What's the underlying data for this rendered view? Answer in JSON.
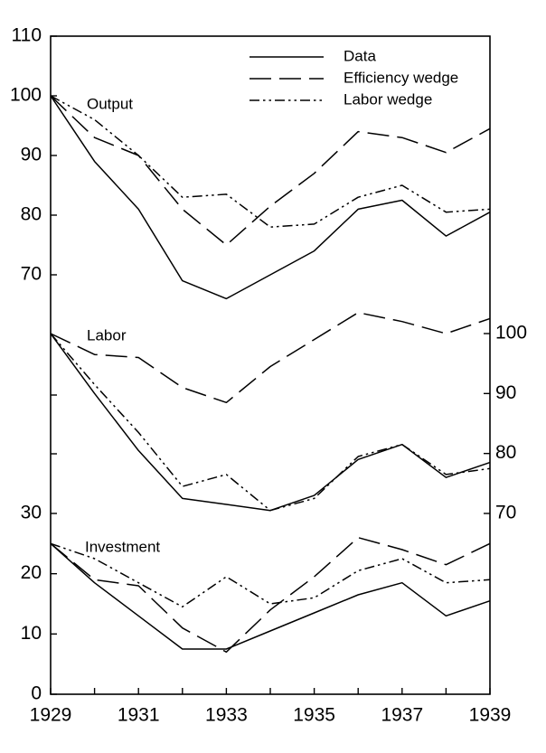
{
  "chart_data": {
    "type": "line",
    "title": "",
    "xlabel": "",
    "ylabel": "",
    "x": [
      1929,
      1930,
      1931,
      1932,
      1933,
      1934,
      1935,
      1936,
      1937,
      1938,
      1939
    ],
    "xlim": [
      1929,
      1939
    ],
    "x_tick_labels": [
      "1929",
      "1931",
      "1933",
      "1935",
      "1937",
      "1939"
    ],
    "grid": false,
    "legend": {
      "placement": "top-right",
      "entries": [
        {
          "name": "Data",
          "style": "solid"
        },
        {
          "name": "Efficiency wedge",
          "style": "dashed"
        },
        {
          "name": "Labor wedge",
          "style": "dash-dot-dot"
        }
      ]
    },
    "panels": [
      {
        "label": "Output",
        "axis_side": "left",
        "ylim": [
          70,
          110
        ],
        "y_tick_labels": [
          "70",
          "80",
          "90",
          "100",
          "110"
        ],
        "series": [
          {
            "name": "Data",
            "values": [
              100,
              89,
              81,
              69,
              66,
              70,
              74,
              81,
              82.5,
              76.5,
              80.5
            ]
          },
          {
            "name": "Efficiency wedge",
            "values": [
              100,
              93,
              90,
              81,
              75,
              81.5,
              87,
              94,
              93,
              90.5,
              94.5
            ]
          },
          {
            "name": "Labor wedge",
            "values": [
              100,
              96,
              90,
              83,
              83.5,
              78,
              78.5,
              83,
              85,
              80.5,
              81
            ]
          }
        ]
      },
      {
        "label": "Labor",
        "axis_side": "right",
        "ylim": [
          70,
          100
        ],
        "y_tick_labels": [
          "70",
          "80",
          "90",
          "100"
        ],
        "series": [
          {
            "name": "Data",
            "values": [
              100,
              90,
              80.5,
              72.5,
              71.5,
              70.5,
              73,
              79,
              81.5,
              76,
              78.5
            ]
          },
          {
            "name": "Efficiency wedge",
            "values": [
              100,
              96.5,
              96,
              91,
              88.5,
              94.5,
              99,
              103.5,
              102,
              100,
              102.5
            ]
          },
          {
            "name": "Labor wedge",
            "values": [
              100,
              91.5,
              83.5,
              74.5,
              76.5,
              70.5,
              72.5,
              79.5,
              81.5,
              76.5,
              77.5
            ]
          }
        ]
      },
      {
        "label": "Investment",
        "axis_side": "left",
        "ylim": [
          0,
          30
        ],
        "y_tick_labels": [
          "0",
          "10",
          "20",
          "30"
        ],
        "series": [
          {
            "name": "Data",
            "values": [
              25,
              18.5,
              13,
              7.5,
              7.5,
              10.5,
              13.5,
              16.5,
              18.5,
              13,
              15.5
            ]
          },
          {
            "name": "Efficiency wedge",
            "values": [
              25,
              19,
              18,
              11,
              7,
              14,
              19.5,
              26,
              24,
              21.5,
              25
            ]
          },
          {
            "name": "Labor wedge",
            "values": [
              25,
              22.5,
              18.5,
              14.5,
              19.5,
              15,
              16,
              20.5,
              22.5,
              18.5,
              19
            ]
          }
        ]
      }
    ]
  }
}
